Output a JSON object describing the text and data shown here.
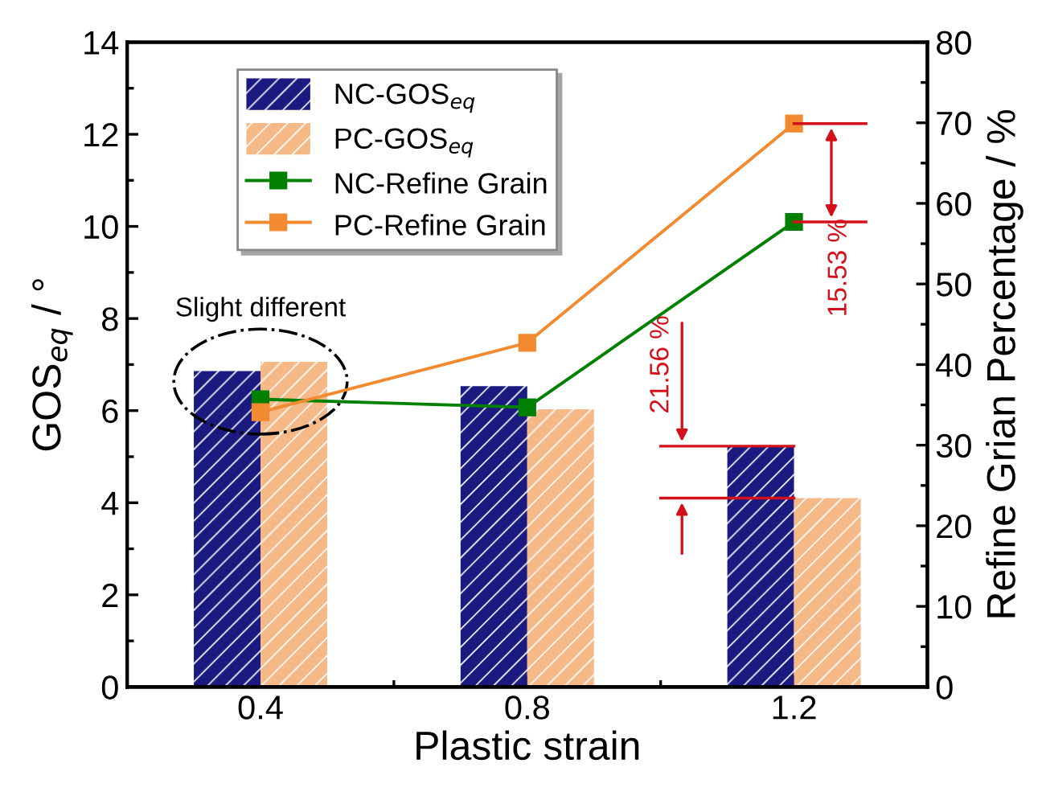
{
  "chart_data": {
    "type": "bar",
    "xlabel": "Plastic strain",
    "ylabel": "GOS$_{eq}$ / °",
    "y2label": "Refine Grian Percentage / %",
    "categories": [
      "0.4",
      "0.8",
      "1.2"
    ],
    "series": [
      {
        "name": "NC-GOS$_{eq}$",
        "type": "bar",
        "color": "#1a1a80",
        "values": [
          6.86,
          6.53,
          5.23
        ]
      },
      {
        "name": "PC-GOS$_{eq}$",
        "type": "bar",
        "color": "#f5b887",
        "values": [
          7.06,
          6.03,
          4.1
        ]
      },
      {
        "name": "NC-Refine Grain",
        "type": "line",
        "axis": "y2",
        "color": "#008000",
        "marker": "square",
        "values": [
          35.7,
          34.7,
          57.7
        ]
      },
      {
        "name": "PC-Refine Grain",
        "type": "line",
        "axis": "y2",
        "color": "#f28a30",
        "marker": "square",
        "values": [
          34.1,
          42.7,
          69.9
        ]
      }
    ],
    "ylim": [
      0,
      14
    ],
    "yticks": [
      0,
      2,
      4,
      6,
      8,
      10,
      12,
      14
    ],
    "y2lim": [
      0,
      80
    ],
    "y2ticks": [
      0,
      10,
      20,
      30,
      40,
      50,
      60,
      70,
      80
    ],
    "annotations": [
      "Slight different",
      {
        "text": "21.56 %",
        "x": "1.2",
        "y": 5.23
      },
      "15.53 %"
    ],
    "legend": "top left",
    "grid": false
  }
}
